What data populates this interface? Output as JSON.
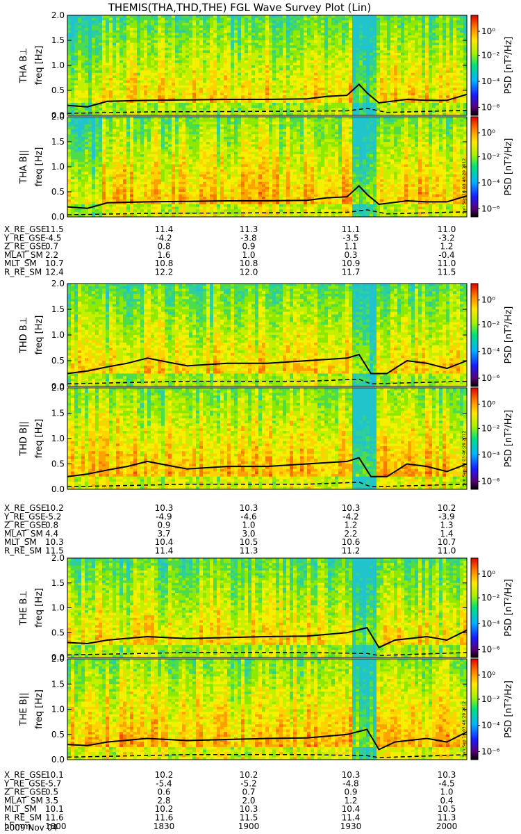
{
  "title": "THEMIS(THA,THD,THE) FGL Wave Survey Plot (Lin)",
  "colorbar_label": "PSD [nT²/Hz]",
  "colorbar_ticks": [
    "10⁰",
    "10⁻²",
    "10⁻⁴",
    "10⁻⁶"
  ],
  "timestamp": "Sun Sep 16 03:46:29 2012",
  "date_label": "2009 Nov 04",
  "time_ticks": [
    "1800",
    "1830",
    "1900",
    "1930",
    "2000"
  ],
  "chart_data": [
    {
      "type": "heatmap",
      "panel": "THA B⊥",
      "ylabel": "THA B⊥",
      "ylabel2": "freq [Hz]",
      "yticks": [
        "0.0",
        "0.5",
        "1.0",
        "1.5",
        "2.0"
      ],
      "ylim": [
        0,
        2.0
      ],
      "xlim": [
        "1800",
        "2000"
      ],
      "colorscale": "log10 PSD [nT²/Hz], 10⁻⁶ (black/purple) to 10¹ (red)",
      "line_solid": {
        "x": [
          0,
          0.05,
          0.1,
          0.2,
          0.3,
          0.4,
          0.5,
          0.6,
          0.65,
          0.7,
          0.73,
          0.75,
          0.78,
          0.85,
          0.9,
          0.95,
          1.0
        ],
        "y": [
          0.2,
          0.17,
          0.28,
          0.3,
          0.31,
          0.32,
          0.32,
          0.33,
          0.38,
          0.4,
          0.62,
          0.45,
          0.25,
          0.32,
          0.3,
          0.3,
          0.42
        ]
      },
      "line_dashed": {
        "x": [
          0,
          0.2,
          0.5,
          0.7,
          0.75,
          0.8,
          1.0
        ],
        "y": [
          0.04,
          0.07,
          0.08,
          0.09,
          0.14,
          0.06,
          0.1
        ]
      }
    },
    {
      "type": "heatmap",
      "panel": "THA B∥",
      "ylabel": "THA B||",
      "ylabel2": "freq [Hz]",
      "yticks": [
        "0.0",
        "0.5",
        "1.0",
        "1.5",
        "2.0"
      ],
      "ylim": [
        0,
        2.0
      ],
      "xlim": [
        "1800",
        "2000"
      ],
      "line_solid": {
        "x": [
          0,
          0.05,
          0.1,
          0.2,
          0.3,
          0.4,
          0.5,
          0.6,
          0.65,
          0.7,
          0.73,
          0.75,
          0.78,
          0.85,
          0.9,
          0.95,
          1.0
        ],
        "y": [
          0.2,
          0.17,
          0.28,
          0.3,
          0.31,
          0.32,
          0.32,
          0.33,
          0.38,
          0.4,
          0.62,
          0.45,
          0.25,
          0.32,
          0.3,
          0.3,
          0.42
        ]
      },
      "line_dashed": {
        "x": [
          0,
          0.2,
          0.5,
          0.7,
          0.75,
          0.8,
          1.0
        ],
        "y": [
          0.04,
          0.07,
          0.08,
          0.09,
          0.14,
          0.06,
          0.1
        ]
      }
    },
    {
      "type": "heatmap",
      "panel": "THD B⊥",
      "ylabel": "THD B⊥",
      "ylabel2": "freq [Hz]",
      "yticks": [
        "0.0",
        "0.5",
        "1.0",
        "1.5",
        "2.0"
      ],
      "ylim": [
        0,
        2.0
      ],
      "xlim": [
        "1800",
        "2000"
      ],
      "line_solid": {
        "x": [
          0,
          0.05,
          0.1,
          0.15,
          0.2,
          0.3,
          0.4,
          0.5,
          0.6,
          0.7,
          0.73,
          0.76,
          0.8,
          0.85,
          0.9,
          0.95,
          1.0
        ],
        "y": [
          0.25,
          0.3,
          0.38,
          0.45,
          0.55,
          0.4,
          0.45,
          0.45,
          0.5,
          0.55,
          0.62,
          0.25,
          0.25,
          0.5,
          0.45,
          0.35,
          0.5
        ]
      },
      "line_dashed": {
        "x": [
          0,
          0.3,
          0.6,
          0.73,
          0.76,
          1.0
        ],
        "y": [
          0.05,
          0.1,
          0.1,
          0.14,
          0.05,
          0.1
        ]
      }
    },
    {
      "type": "heatmap",
      "panel": "THD B∥",
      "ylabel": "THD B||",
      "ylabel2": "freq [Hz]",
      "yticks": [
        "0.0",
        "0.5",
        "1.0",
        "1.5",
        "2.0"
      ],
      "ylim": [
        0,
        2.0
      ],
      "xlim": [
        "1800",
        "2000"
      ],
      "line_solid": {
        "x": [
          0,
          0.05,
          0.1,
          0.15,
          0.2,
          0.3,
          0.4,
          0.5,
          0.6,
          0.7,
          0.73,
          0.76,
          0.8,
          0.85,
          0.9,
          0.95,
          1.0
        ],
        "y": [
          0.25,
          0.3,
          0.38,
          0.45,
          0.55,
          0.4,
          0.45,
          0.45,
          0.5,
          0.55,
          0.62,
          0.25,
          0.25,
          0.5,
          0.45,
          0.35,
          0.5
        ]
      },
      "line_dashed": {
        "x": [
          0,
          0.3,
          0.6,
          0.73,
          0.76,
          1.0
        ],
        "y": [
          0.05,
          0.1,
          0.1,
          0.14,
          0.05,
          0.1
        ]
      }
    },
    {
      "type": "heatmap",
      "panel": "THE B⊥",
      "ylabel": "THE B⊥",
      "ylabel2": "freq [Hz]",
      "yticks": [
        "0.0",
        "0.5",
        "1.0",
        "1.5",
        "2.0"
      ],
      "ylim": [
        0,
        2.0
      ],
      "xlim": [
        "1800",
        "2000"
      ],
      "line_solid": {
        "x": [
          0,
          0.05,
          0.1,
          0.2,
          0.3,
          0.4,
          0.5,
          0.6,
          0.7,
          0.75,
          0.78,
          0.82,
          0.9,
          0.95,
          1.0
        ],
        "y": [
          0.3,
          0.28,
          0.35,
          0.42,
          0.38,
          0.4,
          0.42,
          0.43,
          0.5,
          0.6,
          0.2,
          0.35,
          0.42,
          0.35,
          0.55
        ]
      },
      "line_dashed": {
        "x": [
          0,
          0.3,
          0.6,
          0.75,
          0.78,
          1.0
        ],
        "y": [
          0.05,
          0.1,
          0.1,
          0.08,
          0.04,
          0.1
        ]
      }
    },
    {
      "type": "heatmap",
      "panel": "THE B∥",
      "ylabel": "THE B||",
      "ylabel2": "freq [Hz]",
      "yticks": [
        "0.0",
        "0.5",
        "1.0",
        "1.5",
        "2.0"
      ],
      "ylim": [
        0,
        2.0
      ],
      "xlim": [
        "1800",
        "2000"
      ],
      "line_solid": {
        "x": [
          0,
          0.05,
          0.1,
          0.2,
          0.3,
          0.4,
          0.5,
          0.6,
          0.7,
          0.75,
          0.78,
          0.82,
          0.9,
          0.95,
          1.0
        ],
        "y": [
          0.3,
          0.28,
          0.35,
          0.42,
          0.38,
          0.4,
          0.42,
          0.43,
          0.5,
          0.6,
          0.2,
          0.35,
          0.42,
          0.35,
          0.55
        ]
      },
      "line_dashed": {
        "x": [
          0,
          0.3,
          0.6,
          0.75,
          0.78,
          1.0
        ],
        "y": [
          0.05,
          0.1,
          0.1,
          0.08,
          0.04,
          0.1
        ]
      }
    }
  ],
  "ephemeris": [
    {
      "rows": [
        {
          "label": "X_RE_GSE",
          "values": [
            "11.5",
            "11.4",
            "11.3",
            "11.1",
            "11.0"
          ]
        },
        {
          "label": "Y_RE_GSE",
          "values": [
            "-4.5",
            "-4.2",
            "-3.8",
            "-3.5",
            "-3.2"
          ]
        },
        {
          "label": "Z_RE_GSE",
          "values": [
            "0.7",
            "0.8",
            "0.9",
            "1.1",
            "1.2"
          ]
        },
        {
          "label": "MLAT_SM",
          "values": [
            "2.2",
            "1.6",
            "1.0",
            "0.3",
            "-0.4"
          ]
        },
        {
          "label": "MLT_SM",
          "values": [
            "10.7",
            "10.8",
            "10.8",
            "10.9",
            "11.0"
          ]
        },
        {
          "label": "R_RE_SM",
          "values": [
            "12.4",
            "12.2",
            "12.0",
            "11.7",
            "11.5"
          ]
        }
      ]
    },
    {
      "rows": [
        {
          "label": "X_RE_GSE",
          "values": [
            "10.2",
            "10.3",
            "10.3",
            "10.3",
            "10.2"
          ]
        },
        {
          "label": "Y_RE_GSE",
          "values": [
            "-5.2",
            "-4.9",
            "-4.6",
            "-4.2",
            "-3.9"
          ]
        },
        {
          "label": "Z_RE_GSE",
          "values": [
            "0.8",
            "0.9",
            "1.0",
            "1.2",
            "1.3"
          ]
        },
        {
          "label": "MLAT_SM",
          "values": [
            "4.4",
            "3.7",
            "3.0",
            "2.2",
            "1.4"
          ]
        },
        {
          "label": "MLT_SM",
          "values": [
            "10.3",
            "10.4",
            "10.5",
            "10.6",
            "10.7"
          ]
        },
        {
          "label": "R_RE_SM",
          "values": [
            "11.5",
            "11.4",
            "11.3",
            "11.2",
            "11.0"
          ]
        }
      ]
    },
    {
      "rows": [
        {
          "label": "X_RE_GSE",
          "values": [
            "10.1",
            "10.2",
            "10.2",
            "10.3",
            "10.3"
          ]
        },
        {
          "label": "Y_RE_GSE",
          "values": [
            "-5.7",
            "-5.4",
            "-5.2",
            "-4.8",
            "-4.5"
          ]
        },
        {
          "label": "Z_RE_GSE",
          "values": [
            "0.5",
            "0.6",
            "0.7",
            "0.9",
            "1.0"
          ]
        },
        {
          "label": "MLAT_SM",
          "values": [
            "3.5",
            "2.8",
            "2.0",
            "1.2",
            "0.4"
          ]
        },
        {
          "label": "MLT_SM",
          "values": [
            "10.1",
            "10.2",
            "10.3",
            "10.4",
            "10.5"
          ]
        },
        {
          "label": "R_RE_SM",
          "values": [
            "11.6",
            "11.6",
            "11.5",
            "11.4",
            "11.3"
          ]
        },
        {
          "label": "hhmm",
          "values": [
            "1800",
            "1830",
            "1900",
            "1930",
            "2000"
          ]
        }
      ]
    }
  ]
}
